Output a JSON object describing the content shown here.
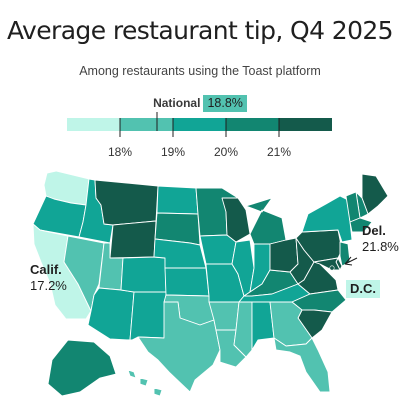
{
  "header": {
    "title": "Average restaurant tip, Q4 2025",
    "subtitle": "Among restaurants using the Toast platform"
  },
  "national": {
    "label": "National",
    "value": "18.8%"
  },
  "legend": {
    "bins": [
      {
        "color": "#bff5e8"
      },
      {
        "color": "#52c2b0"
      },
      {
        "color": "#11a596"
      },
      {
        "color": "#128671"
      },
      {
        "color": "#145a4b"
      }
    ],
    "ticks": [
      "18%",
      "19%",
      "20%",
      "21%"
    ]
  },
  "map": {
    "border_color": "#ffffff",
    "states": {
      "WA": "bin1",
      "OR": "bin3",
      "CA": "bin1",
      "ID": "bin3",
      "NV": "bin2",
      "MT": "bin5",
      "WY": "bin5",
      "UT": "bin2",
      "AZ": "bin3",
      "CO": "bin3",
      "NM": "bin3",
      "ND": "bin3",
      "SD": "bin4",
      "NE": "bin3",
      "KS": "bin3",
      "OK": "bin2",
      "TX": "bin2",
      "MN": "bin4",
      "IA": "bin3",
      "MO": "bin3",
      "AR": "bin2",
      "LA": "bin2",
      "WI": "bin5",
      "IL": "bin3",
      "MS": "bin2",
      "MI": "bin4",
      "IN": "bin3",
      "KY": "bin4",
      "TN": "bin3",
      "AL": "bin3",
      "OH": "bin5",
      "WV": "bin5",
      "VA": "bin5",
      "NC": "bin4",
      "SC": "bin5",
      "GA": "bin2",
      "FL": "bin2",
      "PA": "bin5",
      "NY": "bin3",
      "ME": "bin5",
      "NH": "bin4",
      "VT": "bin4",
      "MA": "bin4",
      "NJ": "bin4",
      "DE": "bin5",
      "MD": "bin5",
      "AK": "bin4",
      "HI": "bin2"
    }
  },
  "callouts": {
    "calif": {
      "name": "Calif.",
      "value": "17.2%"
    },
    "del": {
      "name": "Del.",
      "value": "21.8%"
    },
    "dc": {
      "name": "D.C."
    }
  }
}
